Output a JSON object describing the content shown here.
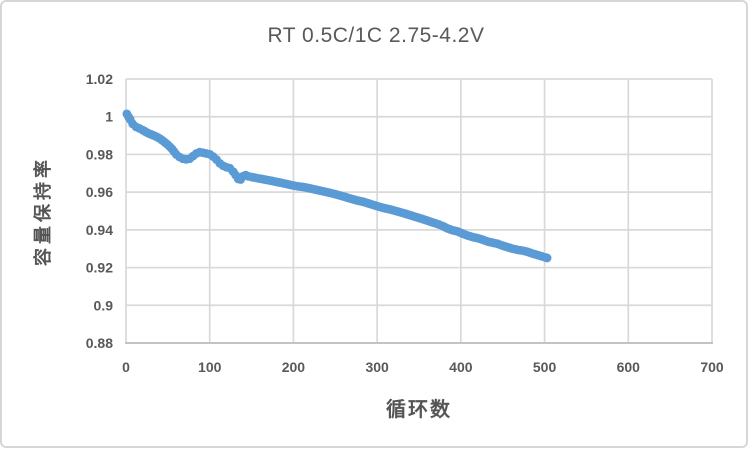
{
  "colors": {
    "series": "#5B9BD5",
    "gridline": "#D9D9D9",
    "axis_line": "#BFBFBF",
    "text": "#595959",
    "border": "#D6D6D6",
    "background": "#FFFFFF"
  },
  "chart_data": {
    "type": "scatter",
    "title": "RT 0.5C/1C 2.75-4.2V",
    "xlabel": "循环数",
    "ylabel": "容量保持率",
    "xlim": [
      0,
      700
    ],
    "ylim": [
      0.88,
      1.02
    ],
    "x_ticks": [
      0,
      100,
      200,
      300,
      400,
      500,
      600,
      700
    ],
    "y_ticks": [
      1.02,
      1,
      0.98,
      0.96,
      0.94,
      0.92,
      0.9,
      0.88
    ],
    "y_tick_labels": [
      "1.02",
      "1",
      "0.98",
      "0.96",
      "0.94",
      "0.92",
      "0.9",
      "0.88"
    ],
    "grid": true,
    "legend": "none",
    "series": [
      {
        "name": "容量保持率",
        "marker": "circle",
        "color": "#5B9BD5",
        "points": [
          [
            1,
            1.0015
          ],
          [
            3,
            1.0
          ],
          [
            5,
            0.9985
          ],
          [
            8,
            0.9962
          ],
          [
            12,
            0.9946
          ],
          [
            16,
            0.9938
          ],
          [
            20,
            0.9929
          ],
          [
            25,
            0.9916
          ],
          [
            30,
            0.9906
          ],
          [
            35,
            0.9897
          ],
          [
            40,
            0.9885
          ],
          [
            45,
            0.9869
          ],
          [
            50,
            0.9851
          ],
          [
            55,
            0.9829
          ],
          [
            60,
            0.98
          ],
          [
            64,
            0.9786
          ],
          [
            68,
            0.9777
          ],
          [
            72,
            0.9774
          ],
          [
            76,
            0.9777
          ],
          [
            80,
            0.9791
          ],
          [
            84,
            0.9805
          ],
          [
            88,
            0.9812
          ],
          [
            92,
            0.9809
          ],
          [
            96,
            0.9805
          ],
          [
            100,
            0.9801
          ],
          [
            104,
            0.9789
          ],
          [
            108,
            0.9773
          ],
          [
            112,
            0.9753
          ],
          [
            116,
            0.974
          ],
          [
            120,
            0.9732
          ],
          [
            124,
            0.9727
          ],
          [
            128,
            0.9709
          ],
          [
            131,
            0.969
          ],
          [
            134,
            0.967
          ],
          [
            137,
            0.9667
          ],
          [
            140,
            0.9685
          ],
          [
            143,
            0.969
          ],
          [
            146,
            0.9684
          ],
          [
            150,
            0.968
          ],
          [
            156,
            0.9675
          ],
          [
            162,
            0.967
          ],
          [
            168,
            0.9665
          ],
          [
            174,
            0.966
          ],
          [
            180,
            0.9654
          ],
          [
            186,
            0.9649
          ],
          [
            192,
            0.9643
          ],
          [
            198,
            0.9637
          ],
          [
            205,
            0.9631
          ],
          [
            212,
            0.9627
          ],
          [
            220,
            0.962
          ],
          [
            228,
            0.9612
          ],
          [
            236,
            0.9604
          ],
          [
            244,
            0.9596
          ],
          [
            252,
            0.9587
          ],
          [
            260,
            0.9577
          ],
          [
            268,
            0.9566
          ],
          [
            276,
            0.9556
          ],
          [
            284,
            0.9548
          ],
          [
            292,
            0.9537
          ],
          [
            300,
            0.9526
          ],
          [
            308,
            0.9516
          ],
          [
            316,
            0.9508
          ],
          [
            324,
            0.9498
          ],
          [
            332,
            0.9488
          ],
          [
            340,
            0.9477
          ],
          [
            348,
            0.9466
          ],
          [
            356,
            0.9455
          ],
          [
            364,
            0.9443
          ],
          [
            370,
            0.9434
          ],
          [
            374,
            0.9428
          ],
          [
            378,
            0.9421
          ],
          [
            384,
            0.9408
          ],
          [
            390,
            0.9398
          ],
          [
            396,
            0.9392
          ],
          [
            402,
            0.938
          ],
          [
            408,
            0.937
          ],
          [
            414,
            0.9362
          ],
          [
            420,
            0.9356
          ],
          [
            426,
            0.9348
          ],
          [
            432,
            0.9338
          ],
          [
            438,
            0.9332
          ],
          [
            444,
            0.9326
          ],
          [
            450,
            0.9316
          ],
          [
            456,
            0.9308
          ],
          [
            462,
            0.93
          ],
          [
            468,
            0.9294
          ],
          [
            474,
            0.929
          ],
          [
            480,
            0.9283
          ],
          [
            486,
            0.9274
          ],
          [
            492,
            0.9266
          ],
          [
            497,
            0.9259
          ],
          [
            501,
            0.9254
          ],
          [
            503,
            0.9251
          ]
        ]
      }
    ]
  }
}
